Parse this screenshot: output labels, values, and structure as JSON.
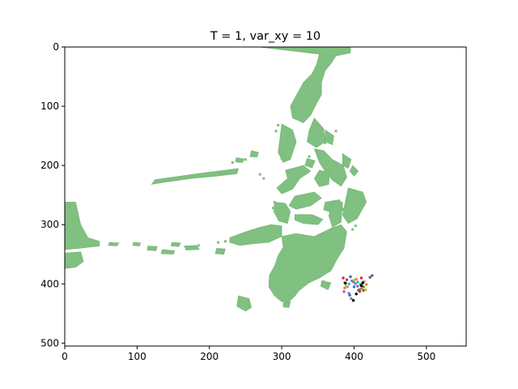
{
  "chart_data": {
    "type": "scatter",
    "title": "T = 1, var_xy = 10",
    "xlabel": "",
    "ylabel": "",
    "xlim": [
      0,
      555
    ],
    "ylim": [
      505,
      0
    ],
    "y_inverted": true,
    "grid": false,
    "x_ticks": [
      0,
      100,
      200,
      300,
      400,
      500
    ],
    "y_ticks": [
      0,
      100,
      200,
      300,
      400,
      500
    ],
    "background_map": {
      "land_color": "#80c080",
      "water_color": "#ffffff",
      "landmasses": [
        [
          [
            268,
            0
          ],
          [
            395,
            0
          ],
          [
            395,
            10
          ],
          [
            375,
            15
          ],
          [
            368,
            28
          ],
          [
            360,
            40
          ],
          [
            355,
            60
          ],
          [
            355,
            80
          ],
          [
            348,
            96
          ],
          [
            340,
            115
          ],
          [
            330,
            128
          ],
          [
            315,
            120
          ],
          [
            312,
            100
          ],
          [
            320,
            82
          ],
          [
            330,
            60
          ],
          [
            342,
            45
          ],
          [
            348,
            30
          ],
          [
            352,
            12
          ]
        ],
        [
          [
            345,
            120
          ],
          [
            358,
            138
          ],
          [
            360,
            160
          ],
          [
            348,
            170
          ],
          [
            335,
            160
          ],
          [
            338,
            140
          ]
        ],
        [
          [
            300,
            130
          ],
          [
            315,
            140
          ],
          [
            320,
            160
          ],
          [
            312,
            190
          ],
          [
            302,
            195
          ],
          [
            295,
            178
          ],
          [
            298,
            150
          ]
        ],
        [
          [
            360,
            140
          ],
          [
            372,
            150
          ],
          [
            370,
            165
          ],
          [
            360,
            160
          ]
        ],
        [
          [
            345,
            172
          ],
          [
            358,
            175
          ],
          [
            370,
            190
          ],
          [
            385,
            200
          ],
          [
            390,
            220
          ],
          [
            382,
            235
          ],
          [
            370,
            225
          ],
          [
            360,
            210
          ],
          [
            352,
            195
          ]
        ],
        [
          [
            384,
            180
          ],
          [
            396,
            190
          ],
          [
            392,
            205
          ],
          [
            384,
            200
          ]
        ],
        [
          [
            398,
            200
          ],
          [
            406,
            210
          ],
          [
            400,
            218
          ],
          [
            394,
            210
          ]
        ],
        [
          [
            335,
            188
          ],
          [
            346,
            192
          ],
          [
            342,
            204
          ],
          [
            332,
            200
          ]
        ],
        [
          [
            305,
            208
          ],
          [
            330,
            200
          ],
          [
            340,
            210
          ],
          [
            325,
            222
          ],
          [
            315,
            240
          ],
          [
            300,
            248
          ],
          [
            293,
            238
          ],
          [
            308,
            222
          ]
        ],
        [
          [
            352,
            208
          ],
          [
            366,
            212
          ],
          [
            365,
            232
          ],
          [
            352,
            236
          ],
          [
            345,
            222
          ]
        ],
        [
          [
            318,
            252
          ],
          [
            345,
            245
          ],
          [
            355,
            255
          ],
          [
            340,
            268
          ],
          [
            320,
            274
          ],
          [
            310,
            268
          ]
        ],
        [
          [
            290,
            262
          ],
          [
            305,
            264
          ],
          [
            312,
            278
          ],
          [
            308,
            298
          ],
          [
            296,
            294
          ],
          [
            289,
            278
          ]
        ],
        [
          [
            360,
            262
          ],
          [
            380,
            258
          ],
          [
            386,
            276
          ],
          [
            370,
            280
          ],
          [
            358,
            275
          ]
        ],
        [
          [
            318,
            283
          ],
          [
            342,
            283
          ],
          [
            357,
            291
          ],
          [
            350,
            300
          ],
          [
            330,
            298
          ],
          [
            318,
            292
          ]
        ],
        [
          [
            392,
            238
          ],
          [
            412,
            245
          ],
          [
            417,
            262
          ],
          [
            404,
            290
          ],
          [
            392,
            298
          ],
          [
            384,
            284
          ],
          [
            388,
            260
          ]
        ],
        [
          [
            370,
            260
          ],
          [
            384,
            262
          ],
          [
            382,
            296
          ],
          [
            370,
            304
          ],
          [
            365,
            285
          ]
        ],
        [
          [
            258,
            175
          ],
          [
            268,
            178
          ],
          [
            266,
            186
          ],
          [
            256,
            185
          ]
        ],
        [
          [
            237,
            187
          ],
          [
            248,
            189
          ],
          [
            246,
            195
          ],
          [
            236,
            194
          ]
        ],
        [
          [
            125,
            224
          ],
          [
            160,
            218
          ],
          [
            195,
            212
          ],
          [
            222,
            208
          ],
          [
            240,
            205
          ],
          [
            238,
            214
          ],
          [
            210,
            218
          ],
          [
            175,
            222
          ],
          [
            140,
            228
          ],
          [
            120,
            232
          ]
        ],
        [
          [
            0,
            262
          ],
          [
            15,
            262
          ],
          [
            22,
            300
          ],
          [
            32,
            322
          ],
          [
            48,
            328
          ],
          [
            48,
            336
          ],
          [
            20,
            340
          ],
          [
            0,
            342
          ]
        ],
        [
          [
            0,
            348
          ],
          [
            22,
            346
          ],
          [
            26,
            362
          ],
          [
            15,
            372
          ],
          [
            0,
            374
          ]
        ],
        [
          [
            62,
            330
          ],
          [
            75,
            331
          ],
          [
            72,
            336
          ],
          [
            60,
            335
          ]
        ],
        [
          [
            95,
            330
          ],
          [
            105,
            331
          ],
          [
            103,
            336
          ],
          [
            94,
            335
          ]
        ],
        [
          [
            115,
            336
          ],
          [
            128,
            337
          ],
          [
            126,
            344
          ],
          [
            114,
            343
          ]
        ],
        [
          [
            148,
            330
          ],
          [
            160,
            331
          ],
          [
            158,
            337
          ],
          [
            147,
            336
          ]
        ],
        [
          [
            165,
            336
          ],
          [
            182,
            335
          ],
          [
            186,
            342
          ],
          [
            168,
            343
          ]
        ],
        [
          [
            228,
            322
          ],
          [
            250,
            312
          ],
          [
            268,
            305
          ],
          [
            285,
            300
          ],
          [
            300,
            302
          ],
          [
            300,
            320
          ],
          [
            282,
            330
          ],
          [
            262,
            332
          ],
          [
            242,
            335
          ],
          [
            228,
            330
          ]
        ],
        [
          [
            300,
            320
          ],
          [
            320,
            315
          ],
          [
            345,
            320
          ],
          [
            370,
            305
          ],
          [
            382,
            300
          ],
          [
            390,
            312
          ],
          [
            386,
            340
          ],
          [
            378,
            355
          ],
          [
            368,
            378
          ],
          [
            352,
            390
          ],
          [
            338,
            398
          ],
          [
            325,
            410
          ],
          [
            317,
            422
          ],
          [
            309,
            431
          ],
          [
            300,
            430
          ],
          [
            290,
            420
          ],
          [
            282,
            405
          ],
          [
            283,
            385
          ],
          [
            290,
            370
          ],
          [
            295,
            352
          ],
          [
            302,
            338
          ]
        ],
        [
          [
            240,
            420
          ],
          [
            255,
            425
          ],
          [
            258,
            440
          ],
          [
            250,
            446
          ],
          [
            238,
            438
          ]
        ],
        [
          [
            302,
            432
          ],
          [
            312,
            430
          ],
          [
            310,
            440
          ],
          [
            302,
            439
          ]
        ],
        [
          [
            210,
            340
          ],
          [
            222,
            341
          ],
          [
            220,
            350
          ],
          [
            208,
            349
          ]
        ],
        [
          [
            135,
            342
          ],
          [
            152,
            344
          ],
          [
            150,
            350
          ],
          [
            133,
            349
          ]
        ],
        [
          [
            355,
            395
          ],
          [
            368,
            398
          ],
          [
            364,
            410
          ],
          [
            354,
            404
          ]
        ]
      ],
      "coastal_dots": [
        [
          295,
          132
        ],
        [
          292,
          142
        ],
        [
          375,
          142
        ],
        [
          362,
          152
        ],
        [
          360,
          162
        ],
        [
          300,
          188
        ],
        [
          338,
          185
        ],
        [
          290,
          262
        ],
        [
          288,
          272
        ],
        [
          270,
          215
        ],
        [
          275,
          222
        ],
        [
          232,
          195
        ],
        [
          250,
          190
        ],
        [
          400,
          210
        ],
        [
          410,
          262
        ],
        [
          402,
          302
        ],
        [
          398,
          308
        ],
        [
          390,
          290
        ],
        [
          185,
          335
        ],
        [
          212,
          330
        ],
        [
          222,
          328
        ],
        [
          370,
          310
        ],
        [
          358,
          396
        ]
      ]
    },
    "series": [
      {
        "color": "#ff7f0e",
        "points": [
          [
            403,
            392
          ],
          [
            417,
            401
          ],
          [
            387,
            407
          ]
        ]
      },
      {
        "color": "#1f77b4",
        "points": [
          [
            395,
            388
          ],
          [
            425,
            386
          ],
          [
            400,
            405
          ],
          [
            394,
            419
          ]
        ]
      },
      {
        "color": "#2ca02c",
        "points": [
          [
            413,
            405
          ],
          [
            409,
            401
          ],
          [
            412,
            399
          ],
          [
            406,
            411
          ]
        ]
      },
      {
        "color": "#d62728",
        "points": [
          [
            385,
            390
          ],
          [
            410,
            390
          ],
          [
            399,
            396
          ],
          [
            413,
            411
          ]
        ]
      },
      {
        "color": "#9467bd",
        "points": [
          [
            397,
            395
          ],
          [
            405,
            404
          ],
          [
            386,
            413
          ],
          [
            393,
            416
          ]
        ]
      },
      {
        "color": "#8c564b",
        "points": [
          [
            390,
            393
          ],
          [
            422,
            389
          ],
          [
            407,
            410
          ],
          [
            408,
            413
          ]
        ]
      },
      {
        "color": "#e377c2",
        "points": [
          [
            402,
            400
          ],
          [
            414,
            396
          ],
          [
            391,
            405
          ]
        ]
      },
      {
        "color": "#7f7f7f",
        "points": [
          [
            410,
            408
          ],
          [
            396,
            425
          ],
          [
            387,
            398
          ]
        ]
      },
      {
        "color": "#bcbd22",
        "points": [
          [
            416,
            410
          ],
          [
            400,
            394
          ],
          [
            389,
            404
          ]
        ]
      },
      {
        "color": "#17becf",
        "points": [
          [
            393,
            400
          ],
          [
            401,
            399
          ],
          [
            405,
            397
          ]
        ]
      },
      {
        "color": "#000000",
        "points": [
          [
            388,
            399
          ],
          [
            410,
            403
          ],
          [
            403,
            417
          ],
          [
            399,
            428
          ],
          [
            412,
            398
          ]
        ]
      }
    ]
  }
}
